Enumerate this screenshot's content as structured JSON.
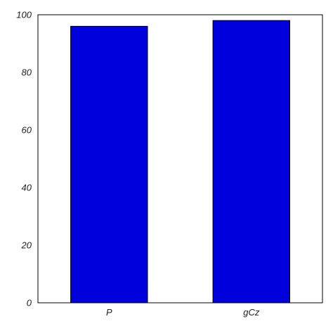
{
  "chart_data": {
    "type": "bar",
    "categories": [
      "P",
      "gCz"
    ],
    "values": [
      96,
      98
    ],
    "ylim": [
      0,
      100
    ],
    "yticks": [
      0,
      20,
      40,
      60,
      80,
      100
    ],
    "title": "",
    "xlabel": "",
    "ylabel": "",
    "grid": false,
    "legend": "none",
    "bar_color": "#0000dd",
    "bar_edge_color": "#000000",
    "axis_color": "#000000"
  }
}
